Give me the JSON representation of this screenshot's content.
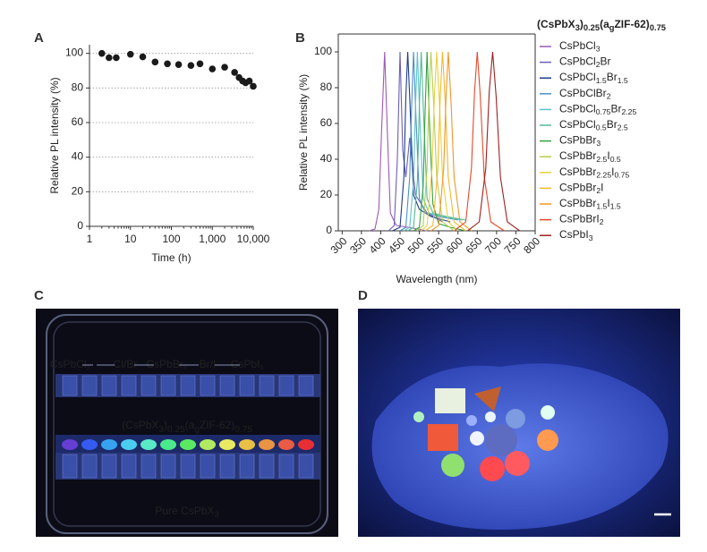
{
  "chart_data": [
    {
      "type": "scatter",
      "panel": "A",
      "xlabel": "Time (h)",
      "ylabel": "Relative PL intensity (%)",
      "xscale": "log",
      "color": "#1a1a1a",
      "grid": true,
      "x": [
        2,
        3,
        4.5,
        10,
        20,
        40,
        80,
        150,
        300,
        500,
        1000,
        2000,
        3500,
        4500,
        5500,
        6500,
        8000,
        10000
      ],
      "values": [
        100,
        97.5,
        97.5,
        99.5,
        98,
        95,
        94,
        93.5,
        93,
        94,
        91,
        92,
        89,
        86,
        84,
        83,
        84,
        81
      ],
      "xlim": [
        1,
        10000
      ],
      "xticks": [
        1,
        10,
        100,
        {
          "value": 1000,
          "label": "1,000"
        },
        {
          "value": 10000,
          "label": "10,000"
        }
      ],
      "ylim": [
        0,
        105
      ],
      "yticks": [
        0,
        20,
        40,
        60,
        80,
        100
      ]
    },
    {
      "type": "line",
      "panel": "B",
      "xlabel": "Wavelength (nm)",
      "ylabel": "Relative PL intensity (%)",
      "legend_title": "(CsPbX3)0.25(agZIF-62)0.75",
      "xlim": [
        290,
        800
      ],
      "xticks": [
        300,
        350,
        400,
        450,
        500,
        550,
        600,
        650,
        700,
        750,
        800
      ],
      "ylim": [
        0,
        110
      ],
      "yticks": [
        0,
        20,
        40,
        60,
        80,
        100
      ],
      "series": [
        {
          "name": "CsPbCl3",
          "color": "#9b59b6",
          "x": [
            370,
            385,
            395,
            402,
            410,
            418,
            425,
            440,
            470,
            520
          ],
          "values": [
            0,
            1,
            12,
            55,
            100,
            50,
            10,
            3,
            2,
            0
          ]
        },
        {
          "name": "CsPbCl2Br",
          "color": "#6a5fb4",
          "x": [
            420,
            435,
            443,
            450,
            457,
            465,
            475,
            490,
            520,
            560
          ],
          "values": [
            0,
            3,
            40,
            100,
            45,
            30,
            52,
            20,
            10,
            5
          ]
        },
        {
          "name": "CsPbCl1.5Br1.5",
          "color": "#1f3c88",
          "x": [
            430,
            450,
            460,
            465,
            470,
            476,
            485,
            500,
            530,
            580
          ],
          "values": [
            0,
            2,
            30,
            75,
            100,
            70,
            20,
            12,
            8,
            5
          ]
        },
        {
          "name": "CsPbClBr2",
          "color": "#4a90c8",
          "x": [
            450,
            465,
            475,
            480,
            485,
            491,
            500,
            515,
            550,
            600
          ],
          "values": [
            0,
            2,
            30,
            70,
            100,
            65,
            18,
            10,
            8,
            6
          ]
        },
        {
          "name": "CsPbCl0.75Br2.25",
          "color": "#5cc4cc",
          "x": [
            460,
            475,
            485,
            490,
            495,
            501,
            510,
            525,
            560,
            610
          ],
          "values": [
            0,
            2,
            28,
            70,
            100,
            65,
            18,
            10,
            8,
            6
          ]
        },
        {
          "name": "CsPbCl0.5Br2.5",
          "color": "#55b894",
          "x": [
            470,
            485,
            495,
            500,
            505,
            511,
            520,
            535,
            570,
            620
          ],
          "values": [
            0,
            2,
            28,
            70,
            100,
            65,
            18,
            10,
            8,
            6
          ]
        },
        {
          "name": "CsPbBr3",
          "color": "#35a040",
          "x": [
            485,
            500,
            510,
            515,
            520,
            526,
            535,
            550,
            580,
            620
          ],
          "values": [
            0,
            2,
            25,
            68,
            100,
            62,
            15,
            4,
            2,
            0
          ]
        },
        {
          "name": "CsPbBr2.5I0.5",
          "color": "#b5cf4f",
          "x": [
            495,
            510,
            520,
            525,
            530,
            537,
            545,
            560,
            590
          ],
          "values": [
            0,
            3,
            35,
            75,
            100,
            72,
            30,
            5,
            0
          ]
        },
        {
          "name": "CsPbBr2.25I0.75",
          "color": "#ead13e",
          "x": [
            505,
            520,
            533,
            539,
            545,
            552,
            560,
            575,
            600
          ],
          "values": [
            0,
            3,
            35,
            75,
            100,
            72,
            30,
            5,
            0
          ]
        },
        {
          "name": "CsPbBr2I",
          "color": "#f4b72f",
          "x": [
            515,
            535,
            548,
            554,
            560,
            567,
            575,
            590,
            620
          ],
          "values": [
            0,
            3,
            35,
            75,
            100,
            72,
            30,
            5,
            0
          ]
        },
        {
          "name": "CsPbBr1.5I1.5",
          "color": "#f0962a",
          "x": [
            530,
            550,
            563,
            569,
            575,
            582,
            590,
            605,
            635
          ],
          "values": [
            0,
            3,
            35,
            75,
            100,
            72,
            30,
            5,
            0
          ]
        },
        {
          "name": "CsPbBrI2",
          "color": "#e2492a",
          "x": [
            590,
            620,
            635,
            643,
            650,
            658,
            668,
            685,
            720
          ],
          "values": [
            0,
            5,
            35,
            78,
            100,
            75,
            30,
            5,
            0
          ]
        },
        {
          "name": "CsPbI3",
          "color": "#9e1f1f",
          "x": [
            625,
            655,
            672,
            681,
            690,
            699,
            710,
            728,
            760
          ],
          "values": [
            0,
            5,
            35,
            78,
            100,
            75,
            30,
            5,
            0
          ]
        }
      ]
    }
  ],
  "panel_c": {
    "label": "C",
    "group_labels": [
      "CsPbCl3",
      "Cl/Br",
      "CsPbBr3",
      "Br/I",
      "CsPbI3"
    ],
    "composite_label": "(CsPbX3)0.25(agZIF-62)0.75",
    "pure_label": "Pure CsPbX3"
  },
  "panel_d": {
    "label": "D"
  }
}
